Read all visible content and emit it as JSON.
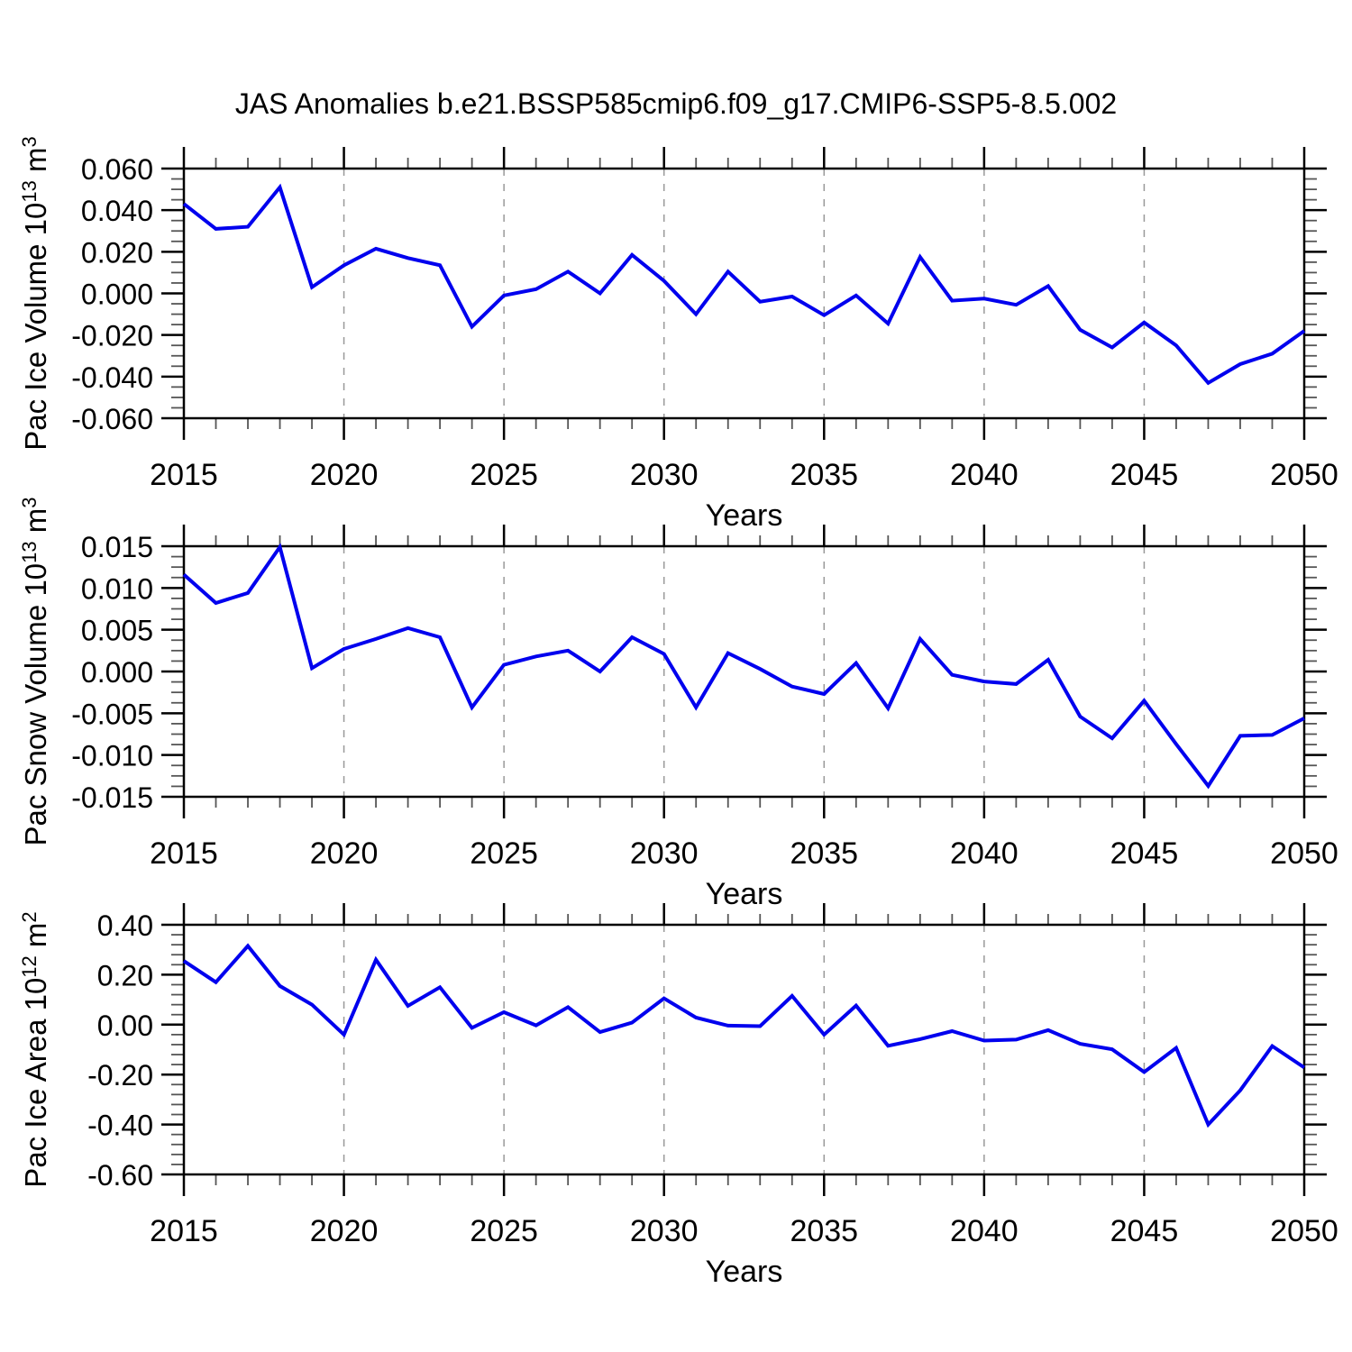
{
  "title": "JAS Anomalies b.e21.BSSP585cmip6.f09_g17.CMIP6-SSP5-8.5.002",
  "colors": {
    "line": "#0000EE",
    "grid": "#999999",
    "frame": "#000000",
    "minor_tick": "#555555"
  },
  "years": [
    2015,
    2016,
    2017,
    2018,
    2019,
    2020,
    2021,
    2022,
    2023,
    2024,
    2025,
    2026,
    2027,
    2028,
    2029,
    2030,
    2031,
    2032,
    2033,
    2034,
    2035,
    2036,
    2037,
    2038,
    2039,
    2040,
    2041,
    2042,
    2043,
    2044,
    2045,
    2046,
    2047,
    2048,
    2049,
    2050
  ],
  "x_axis": {
    "label": "Years",
    "range": [
      2015,
      2050
    ],
    "ticks": [
      2015,
      2020,
      2025,
      2030,
      2035,
      2040,
      2045,
      2050
    ],
    "tick_labels": [
      "2015",
      "2020",
      "2025",
      "2030",
      "2035",
      "2040",
      "2045",
      "2050"
    ],
    "gridlines_at": [
      2020,
      2025,
      2030,
      2035,
      2040,
      2045
    ],
    "minor_step": 1
  },
  "chart_data": [
    {
      "type": "line",
      "name": "pac-ice-volume",
      "ylabel": "Pac Ice Volume 10^13 m^3",
      "ylabel_parts": [
        [
          "Pac Ice Volume 10",
          false
        ],
        [
          "13",
          true
        ],
        [
          " m",
          false
        ],
        [
          "3",
          true
        ]
      ],
      "xlabel": "Years",
      "ylim": [
        -0.06,
        0.06
      ],
      "yticks": [
        0.06,
        0.04,
        0.02,
        0.0,
        -0.02,
        -0.04,
        -0.06
      ],
      "ytick_labels": [
        "0.060",
        "0.040",
        "0.020",
        "0.000",
        "-0.020",
        "-0.040",
        "-0.060"
      ],
      "y_minor_per_major": 3,
      "legend": "none",
      "grid": "vertical-dashed",
      "values": [
        0.043,
        0.031,
        0.032,
        0.051,
        0.003,
        0.0135,
        0.0215,
        0.017,
        0.0135,
        -0.016,
        -0.001,
        0.002,
        0.0105,
        0.0,
        0.0185,
        0.006,
        -0.01,
        0.0105,
        -0.004,
        -0.0015,
        -0.0105,
        -0.001,
        -0.0145,
        0.0175,
        -0.0035,
        -0.0025,
        -0.0055,
        0.0035,
        -0.0175,
        -0.026,
        -0.014,
        -0.025,
        -0.043,
        -0.034,
        -0.029,
        -0.018
      ]
    },
    {
      "type": "line",
      "name": "pac-snow-volume",
      "ylabel": "Pac Snow Volume 10^13 m^3",
      "ylabel_parts": [
        [
          "Pac Snow Volume 10",
          false
        ],
        [
          "13",
          true
        ],
        [
          " m",
          false
        ],
        [
          "3",
          true
        ]
      ],
      "xlabel": "Years",
      "ylim": [
        -0.015,
        0.015
      ],
      "yticks": [
        0.015,
        0.01,
        0.005,
        0.0,
        -0.005,
        -0.01,
        -0.015
      ],
      "ytick_labels": [
        "0.015",
        "0.010",
        "0.005",
        "0.000",
        "-0.005",
        "-0.010",
        "-0.015"
      ],
      "y_minor_per_major": 3,
      "legend": "none",
      "grid": "vertical-dashed",
      "values": [
        0.0116,
        0.0082,
        0.0094,
        0.0149,
        0.0004,
        0.0027,
        0.0039,
        0.0052,
        0.0041,
        -0.0043,
        0.0008,
        0.0018,
        0.0025,
        0.0,
        0.0041,
        0.0021,
        -0.0043,
        0.0022,
        0.0003,
        -0.0018,
        -0.0027,
        0.001,
        -0.0044,
        0.0039,
        -0.0004,
        -0.0012,
        -0.0015,
        0.0014,
        -0.0054,
        -0.008,
        -0.0035,
        -0.0087,
        -0.0137,
        -0.0077,
        -0.0076,
        -0.0056
      ]
    },
    {
      "type": "line",
      "name": "pac-ice-area",
      "ylabel": "Pac Ice Area 10^12 m^2",
      "ylabel_parts": [
        [
          "Pac Ice Area 10",
          false
        ],
        [
          "12",
          true
        ],
        [
          " m",
          false
        ],
        [
          "2",
          true
        ]
      ],
      "xlabel": "Years",
      "ylim": [
        -0.6,
        0.4
      ],
      "yticks": [
        0.4,
        0.2,
        0.0,
        -0.2,
        -0.4,
        -0.6
      ],
      "ytick_labels": [
        "0.40",
        "0.20",
        "0.00",
        "-0.20",
        "-0.40",
        "-0.60"
      ],
      "y_minor_per_major": 4,
      "legend": "none",
      "grid": "vertical-dashed",
      "values": [
        0.255,
        0.17,
        0.315,
        0.155,
        0.08,
        -0.04,
        0.26,
        0.075,
        0.15,
        -0.013,
        0.05,
        -0.003,
        0.07,
        -0.03,
        0.008,
        0.105,
        0.028,
        -0.004,
        -0.006,
        0.115,
        -0.04,
        0.076,
        -0.085,
        -0.058,
        -0.026,
        -0.064,
        -0.06,
        -0.022,
        -0.077,
        -0.099,
        -0.19,
        -0.093,
        -0.4,
        -0.263,
        -0.086,
        -0.172
      ]
    }
  ]
}
